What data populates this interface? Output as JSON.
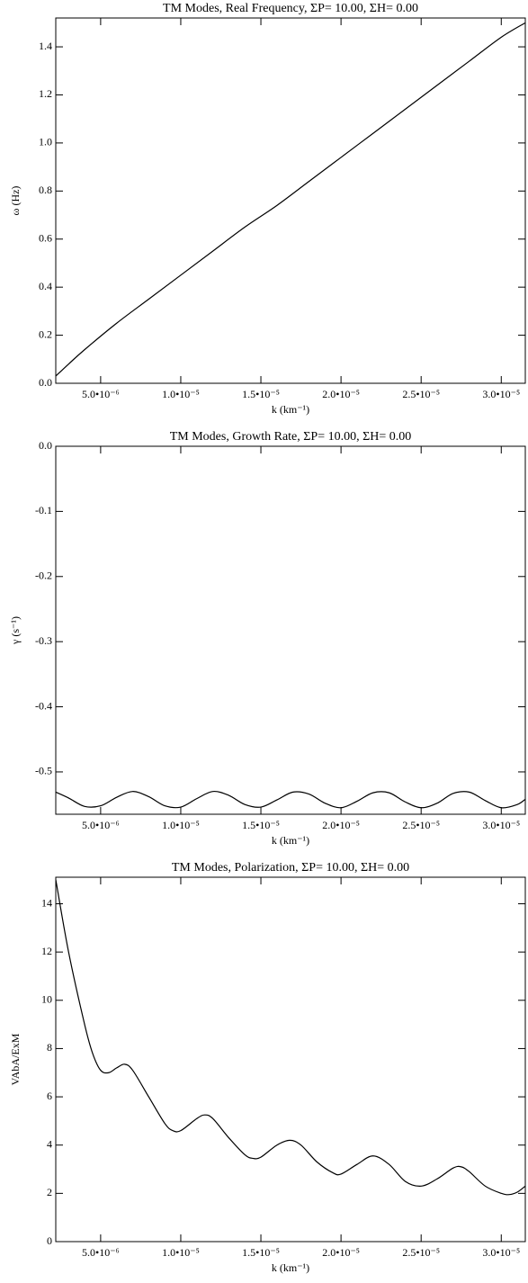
{
  "chart_data": [
    {
      "type": "line",
      "title": "TM Modes, Real Frequency, ΣP= 10.00, ΣH=  0.00",
      "xlabel": "k (km⁻¹)",
      "ylabel": "ω (Hz)",
      "color": "#000000",
      "x": [
        2.2e-06,
        3e-06,
        4e-06,
        6e-06,
        8e-06,
        1e-05,
        1.2e-05,
        1.4e-05,
        1.6e-05,
        1.8e-05,
        2e-05,
        2.2e-05,
        2.4e-05,
        2.6e-05,
        2.8e-05,
        3e-05,
        3.15e-05
      ],
      "values": [
        0.03,
        0.08,
        0.14,
        0.25,
        0.35,
        0.45,
        0.55,
        0.65,
        0.74,
        0.84,
        0.94,
        1.04,
        1.14,
        1.24,
        1.34,
        1.44,
        1.5
      ],
      "xlim": [
        2.2e-06,
        3.15e-05
      ],
      "ylim": [
        0,
        1.52
      ],
      "xticks": [
        {
          "value": 5e-06,
          "label": "5.0•10⁻⁶"
        },
        {
          "value": 1e-05,
          "label": "1.0•10⁻⁵"
        },
        {
          "value": 1.5e-05,
          "label": "1.5•10⁻⁵"
        },
        {
          "value": 2e-05,
          "label": "2.0•10⁻⁵"
        },
        {
          "value": 2.5e-05,
          "label": "2.5•10⁻⁵"
        },
        {
          "value": 3e-05,
          "label": "3.0•10⁻⁵"
        }
      ],
      "yticks": [
        {
          "value": 0,
          "label": "0.0"
        },
        0.2,
        0.4,
        0.6,
        0.8,
        {
          "value": 1,
          "label": "1.0"
        },
        1.2,
        1.4
      ]
    },
    {
      "type": "line",
      "title": "TM Modes, Growth Rate, ΣP= 10.00, ΣH=  0.00",
      "xlabel": "k (km⁻¹)",
      "ylabel": "γ (s⁻¹)",
      "color": "#000000",
      "x": [
        2.2e-06,
        3e-06,
        4e-06,
        5e-06,
        6e-06,
        7e-06,
        8e-06,
        9e-06,
        1e-05,
        1.1e-05,
        1.2e-05,
        1.3e-05,
        1.4e-05,
        1.5e-05,
        1.6e-05,
        1.7e-05,
        1.8e-05,
        1.9e-05,
        2e-05,
        2.1e-05,
        2.2e-05,
        2.3e-05,
        2.4e-05,
        2.5e-05,
        2.6e-05,
        2.7e-05,
        2.8e-05,
        2.9e-05,
        3e-05,
        3.1e-05,
        3.15e-05
      ],
      "values": [
        -0.531,
        -0.54,
        -0.553,
        -0.552,
        -0.539,
        -0.53,
        -0.538,
        -0.552,
        -0.554,
        -0.541,
        -0.53,
        -0.536,
        -0.55,
        -0.554,
        -0.543,
        -0.531,
        -0.534,
        -0.548,
        -0.555,
        -0.545,
        -0.532,
        -0.532,
        -0.546,
        -0.555,
        -0.548,
        -0.533,
        -0.531,
        -0.544,
        -0.555,
        -0.55,
        -0.542
      ],
      "xlim": [
        2.2e-06,
        3.15e-05
      ],
      "ylim": [
        -0.565,
        0
      ],
      "xticks": [
        {
          "value": 5e-06,
          "label": "5.0•10⁻⁶"
        },
        {
          "value": 1e-05,
          "label": "1.0•10⁻⁵"
        },
        {
          "value": 1.5e-05,
          "label": "1.5•10⁻⁵"
        },
        {
          "value": 2e-05,
          "label": "2.0•10⁻⁵"
        },
        {
          "value": 2.5e-05,
          "label": "2.5•10⁻⁵"
        },
        {
          "value": 3e-05,
          "label": "3.0•10⁻⁵"
        }
      ],
      "yticks": [
        -0.5,
        -0.4,
        -0.3,
        -0.2,
        -0.1,
        {
          "value": 0,
          "label": "0.0"
        }
      ]
    },
    {
      "type": "line",
      "title": "TM Modes, Polarization, ΣP= 10.00, ΣH=  0.00",
      "xlabel": "k (km⁻¹)",
      "ylabel": "VAbA/ExM",
      "color": "#000000",
      "x": [
        2.2e-06,
        3e-06,
        4e-06,
        4.5e-06,
        5e-06,
        5.5e-06,
        6e-06,
        6.5e-06,
        7e-06,
        8e-06,
        9e-06,
        9.5e-06,
        1e-05,
        1.1e-05,
        1.15e-05,
        1.2e-05,
        1.3e-05,
        1.4e-05,
        1.45e-05,
        1.5e-05,
        1.6e-05,
        1.68e-05,
        1.75e-05,
        1.85e-05,
        1.95e-05,
        2e-05,
        2.1e-05,
        2.2e-05,
        2.3e-05,
        2.4e-05,
        2.5e-05,
        2.6e-05,
        2.7e-05,
        2.75e-05,
        2.8e-05,
        2.9e-05,
        3e-05,
        3.05e-05,
        3.1e-05,
        3.15e-05
      ],
      "values": [
        15,
        12,
        9,
        7.8,
        7.1,
        7.0,
        7.2,
        7.35,
        7.1,
        6.0,
        4.9,
        4.6,
        4.6,
        5.1,
        5.25,
        5.1,
        4.3,
        3.6,
        3.45,
        3.5,
        4.0,
        4.2,
        4.0,
        3.3,
        2.85,
        2.8,
        3.2,
        3.55,
        3.2,
        2.5,
        2.3,
        2.6,
        3.05,
        3.1,
        2.9,
        2.3,
        2.0,
        1.95,
        2.05,
        2.3
      ],
      "xlim": [
        2.2e-06,
        3.15e-05
      ],
      "ylim": [
        0,
        15.1
      ],
      "xticks": [
        {
          "value": 5e-06,
          "label": "5.0•10⁻⁶"
        },
        {
          "value": 1e-05,
          "label": "1.0•10⁻⁵"
        },
        {
          "value": 1.5e-05,
          "label": "1.5•10⁻⁵"
        },
        {
          "value": 2e-05,
          "label": "2.0•10⁻⁵"
        },
        {
          "value": 2.5e-05,
          "label": "2.5•10⁻⁵"
        },
        {
          "value": 3e-05,
          "label": "3.0•10⁻⁵"
        }
      ],
      "yticks": [
        0,
        2,
        4,
        6,
        8,
        10,
        12,
        14
      ]
    }
  ]
}
